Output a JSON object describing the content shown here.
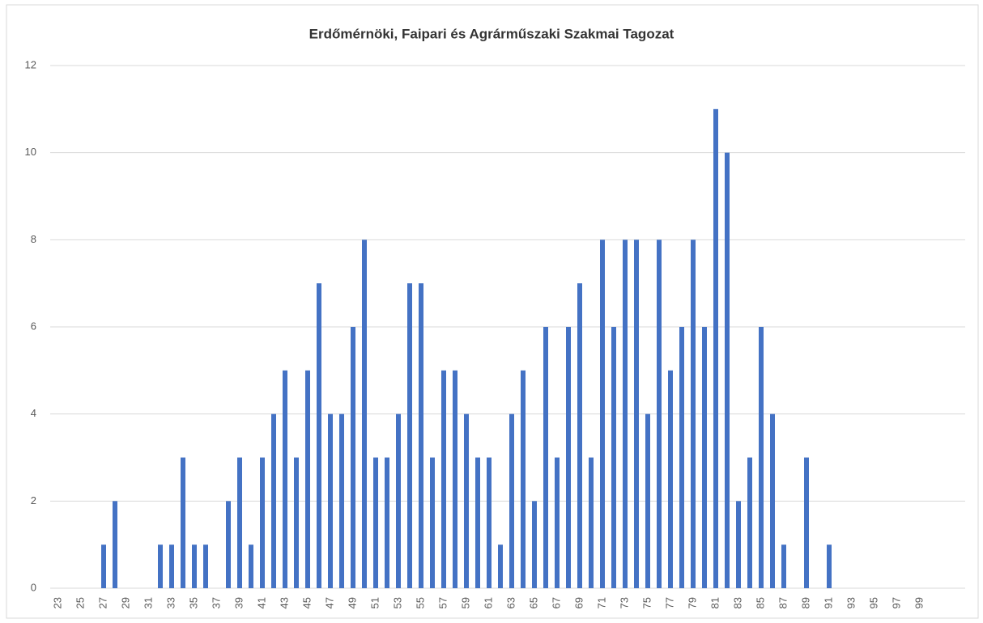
{
  "chart_data": {
    "type": "bar",
    "title": "Erdőmérnöki, Faipari és Agrárműszaki Szakmai Tagozat",
    "categories": [
      "23",
      null,
      "25",
      null,
      "27",
      null,
      "29",
      null,
      "31",
      null,
      "33",
      null,
      "35",
      null,
      "37",
      null,
      "39",
      null,
      "41",
      null,
      "43",
      null,
      "45",
      null,
      "47",
      null,
      "49",
      null,
      "51",
      null,
      "53",
      null,
      "55",
      null,
      "57",
      null,
      "59",
      null,
      "61",
      null,
      "63",
      null,
      "65",
      null,
      "67",
      null,
      "69",
      null,
      "71",
      null,
      "73",
      null,
      "75",
      null,
      "77",
      null,
      "79",
      null,
      "81",
      null,
      "83",
      null,
      "85",
      null,
      "87",
      null,
      "89",
      null,
      "91",
      null,
      "93",
      null,
      "95",
      null,
      "97",
      null,
      "99",
      null
    ],
    "values": [
      0,
      0,
      0,
      0,
      1,
      2,
      0,
      0,
      0,
      1,
      1,
      3,
      1,
      1,
      0,
      2,
      3,
      1,
      3,
      4,
      5,
      3,
      5,
      7,
      4,
      4,
      6,
      8,
      3,
      3,
      4,
      7,
      7,
      3,
      5,
      5,
      4,
      3,
      3,
      1,
      4,
      5,
      2,
      6,
      3,
      6,
      7,
      3,
      8,
      6,
      8,
      8,
      4,
      8,
      5,
      6,
      8,
      6,
      11,
      10,
      2,
      3,
      6,
      4,
      1,
      0,
      3,
      0,
      1,
      0,
      0,
      0,
      0,
      0,
      0,
      0,
      0,
      0
    ],
    "color": "#4472c4",
    "ylim": [
      0,
      12
    ],
    "yticks": [
      0,
      2,
      4,
      6,
      8,
      10,
      12
    ],
    "grid": true
  }
}
